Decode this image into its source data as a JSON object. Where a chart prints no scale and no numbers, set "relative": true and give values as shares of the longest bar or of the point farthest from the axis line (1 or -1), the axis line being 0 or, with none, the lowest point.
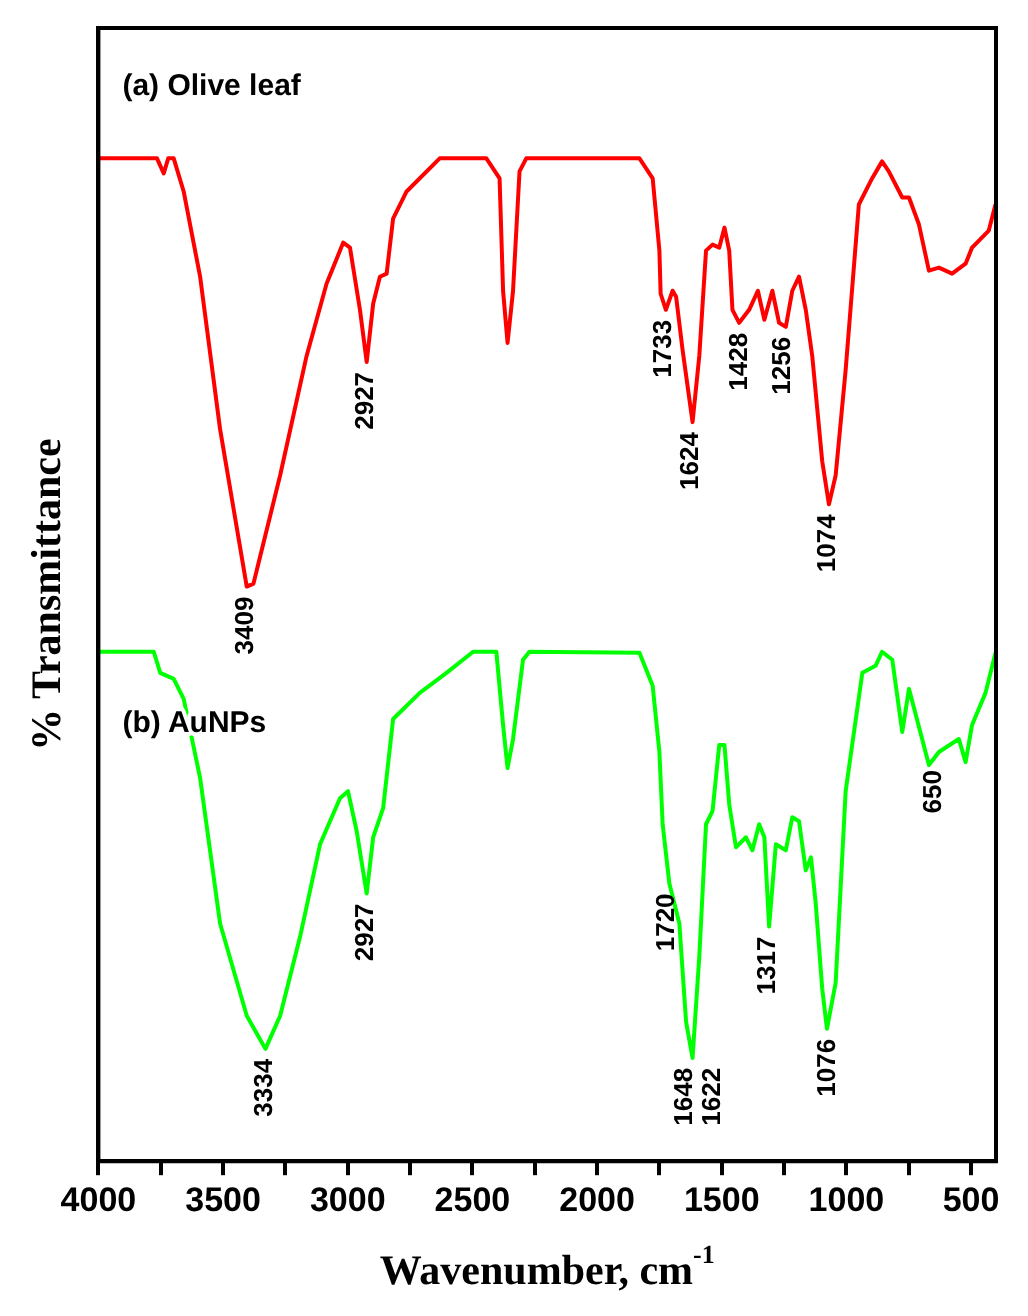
{
  "chart_data": {
    "type": "line",
    "relative": true,
    "xlabel": "Wavenumber, cm$^{-1}$",
    "ylabel": "% Transmittance",
    "xlim": [
      4000,
      400
    ],
    "xticks": [
      4000,
      {
        "value": 3750,
        "label": null
      },
      3500,
      {
        "value": 3250,
        "label": null
      },
      3000,
      {
        "value": 2750,
        "label": null
      },
      2500,
      {
        "value": 2250,
        "label": null
      },
      2000,
      {
        "value": 1750,
        "label": null
      },
      1500,
      {
        "value": 1250,
        "label": null
      },
      1000,
      {
        "value": 750,
        "label": null
      },
      500
    ],
    "grid": false,
    "legend": false,
    "marker": "none",
    "line_style": "solid",
    "series": [
      {
        "name": "(a) Olive leaf",
        "color": "#ff0000",
        "x": [
          4000,
          3765,
          3738,
          3720,
          3698,
          3658,
          3592,
          3512,
          3405,
          3378,
          3271,
          3165,
          3085,
          3018,
          2991,
          2951,
          2924,
          2898,
          2871,
          2844,
          2818,
          2764,
          2631,
          2604,
          2444,
          2391,
          2377,
          2359,
          2337,
          2311,
          2284,
          1830,
          1777,
          1750,
          1745,
          1724,
          1697,
          1683,
          1657,
          1617,
          1590,
          1563,
          1537,
          1510,
          1489,
          1470,
          1457,
          1430,
          1390,
          1355,
          1329,
          1297,
          1270,
          1243,
          1217,
          1190,
          1163,
          1137,
          1097,
          1070,
          1043,
          1003,
          950,
          897,
          857,
          830,
          776,
          749,
          709,
          669,
          629,
          576,
          522,
          496,
          429,
          402
        ],
        "values": [
          1.0,
          1.0,
          0.985,
          1.0,
          1.0,
          0.967,
          0.882,
          0.73,
          0.573,
          0.576,
          0.684,
          0.803,
          0.875,
          0.916,
          0.911,
          0.849,
          0.797,
          0.855,
          0.882,
          0.885,
          0.94,
          0.967,
          1.0,
          1.0,
          1.0,
          0.98,
          0.868,
          0.816,
          0.868,
          0.987,
          1.0,
          1.0,
          0.98,
          0.908,
          0.865,
          0.849,
          0.868,
          0.862,
          0.809,
          0.737,
          0.803,
          0.908,
          0.914,
          0.911,
          0.931,
          0.908,
          0.849,
          0.836,
          0.849,
          0.868,
          0.839,
          0.868,
          0.836,
          0.832,
          0.868,
          0.882,
          0.849,
          0.803,
          0.698,
          0.655,
          0.684,
          0.789,
          0.954,
          0.98,
          0.997,
          0.987,
          0.961,
          0.961,
          0.934,
          0.888,
          0.891,
          0.885,
          0.895,
          0.911,
          0.928,
          0.954
        ]
      },
      {
        "name": "(b) AuNPs",
        "color": "#00ff00",
        "x": [
          4000,
          3778,
          3752,
          3698,
          3658,
          3592,
          3512,
          3405,
          3330,
          3271,
          3191,
          3111,
          3031,
          2999,
          2964,
          2924,
          2898,
          2858,
          2818,
          2711,
          2604,
          2497,
          2404,
          2377,
          2359,
          2337,
          2297,
          2271,
          1830,
          1777,
          1750,
          1737,
          1710,
          1670,
          1643,
          1617,
          1590,
          1563,
          1537,
          1510,
          1489,
          1470,
          1443,
          1403,
          1377,
          1350,
          1329,
          1310,
          1283,
          1243,
          1217,
          1190,
          1163,
          1142,
          1123,
          1097,
          1078,
          1043,
          1003,
          936,
          883,
          857,
          816,
          776,
          749,
          669,
          629,
          549,
          522,
          496,
          442,
          402
        ],
        "values": [
          0.508,
          0.508,
          0.487,
          0.481,
          0.461,
          0.382,
          0.237,
          0.145,
          0.112,
          0.145,
          0.224,
          0.316,
          0.362,
          0.369,
          0.329,
          0.267,
          0.323,
          0.352,
          0.441,
          0.467,
          0.487,
          0.508,
          0.508,
          0.435,
          0.392,
          0.421,
          0.5,
          0.508,
          0.507,
          0.474,
          0.408,
          0.336,
          0.277,
          0.237,
          0.139,
          0.103,
          0.204,
          0.336,
          0.349,
          0.415,
          0.415,
          0.356,
          0.313,
          0.323,
          0.31,
          0.336,
          0.323,
          0.234,
          0.316,
          0.31,
          0.343,
          0.339,
          0.29,
          0.303,
          0.257,
          0.172,
          0.132,
          0.178,
          0.369,
          0.487,
          0.494,
          0.508,
          0.5,
          0.428,
          0.471,
          0.395,
          0.408,
          0.421,
          0.398,
          0.435,
          0.467,
          0.507
        ]
      }
    ],
    "annotations": [
      {
        "text": "3409",
        "x": 3409,
        "y": 0.573
      },
      {
        "text": "2927",
        "x": 2927,
        "y": 0.797
      },
      {
        "text": "1733",
        "x": 1733,
        "y": 0.849
      },
      {
        "text": "1624",
        "x": 1624,
        "y": 0.737
      },
      {
        "text": "1428",
        "x": 1428,
        "y": 0.836
      },
      {
        "text": "1256",
        "x": 1256,
        "y": 0.832
      },
      {
        "text": "1074",
        "x": 1074,
        "y": 0.655
      },
      {
        "text": "3334",
        "x": 3334,
        "y": 0.112
      },
      {
        "text": "2927",
        "x": 2927,
        "y": 0.267
      },
      {
        "text": "1720",
        "x": 1720,
        "y": 0.277
      },
      {
        "text": "1648",
        "x": 1648,
        "y": 0.103
      },
      {
        "text": "1622",
        "x": 1622,
        "y": 0.103
      },
      {
        "text": "1317",
        "x": 1317,
        "y": 0.234
      },
      {
        "text": "1076",
        "x": 1076,
        "y": 0.132
      },
      {
        "text": "650",
        "x": 650,
        "y": 0.4
      }
    ]
  }
}
